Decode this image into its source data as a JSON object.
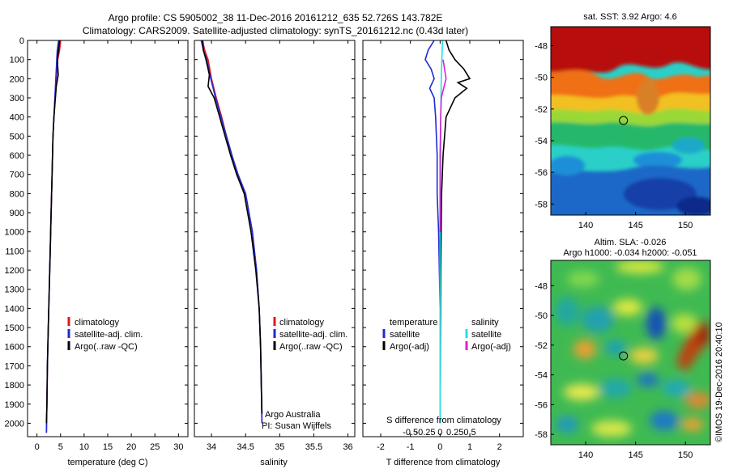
{
  "header": {
    "title_line1": "Argo profile: CS 5905002_38 11-Dec-2016 20161212_635 52.726S 143.782E",
    "title_line2": "Climatology: CARS2009. Satellite-adjusted climatology: synTS_20161212.nc (0.43d later)"
  },
  "colors": {
    "climatology": "#e8141b",
    "satellite": "#1f2ad8",
    "argo": "#000000",
    "salinity_satellite": "#22e0e8",
    "salinity_argo": "#e01fd0"
  },
  "chart_data": [
    {
      "type": "line",
      "name": "temperature-profile",
      "xlabel": "temperature (deg C)",
      "ylabel": "",
      "xlim": [
        -2,
        32
      ],
      "ylim": [
        2070,
        0
      ],
      "x_ticks": [
        0,
        5,
        10,
        15,
        20,
        25,
        30
      ],
      "y_ticks": [
        0,
        100,
        200,
        300,
        400,
        500,
        600,
        700,
        800,
        900,
        1000,
        1100,
        1200,
        1300,
        1400,
        1500,
        1600,
        1700,
        1800,
        1900,
        2000
      ],
      "legend": [
        "climatology",
        "satellite-adj. clim.",
        "Argo(..raw -QC)"
      ],
      "legend_position": "lower-right",
      "series": [
        {
          "name": "climatology",
          "color": "#e8141b",
          "x": [
            5.0,
            4.8,
            4.4,
            4.1,
            3.8,
            3.6,
            3.4,
            3.2,
            3.0,
            2.8,
            2.6,
            2.4,
            2.2,
            2.1,
            2.0
          ],
          "y": [
            0,
            50,
            100,
            200,
            300,
            400,
            500,
            700,
            900,
            1100,
            1300,
            1500,
            1700,
            1900,
            2050
          ]
        },
        {
          "name": "satellite-adj. clim.",
          "color": "#1f2ad8",
          "x": [
            4.6,
            4.3,
            4.2,
            4.0,
            3.8,
            3.6,
            3.4,
            3.2,
            3.0,
            2.8,
            2.6,
            2.4,
            2.2,
            2.1,
            2.0
          ],
          "y": [
            0,
            50,
            100,
            200,
            300,
            400,
            500,
            700,
            900,
            1100,
            1300,
            1500,
            1700,
            1900,
            2050
          ]
        },
        {
          "name": "Argo(..raw -QC)",
          "color": "#000000",
          "x": [
            4.8,
            4.6,
            4.3,
            4.5,
            4.1,
            3.9,
            3.6,
            3.4,
            3.2,
            3.0,
            2.8,
            2.6,
            2.4,
            2.2,
            2.1,
            2.0
          ],
          "y": [
            0,
            50,
            100,
            180,
            240,
            300,
            400,
            500,
            700,
            900,
            1100,
            1300,
            1500,
            1700,
            1900,
            2000
          ]
        }
      ]
    },
    {
      "type": "line",
      "name": "salinity-profile",
      "xlabel": "salinity",
      "ylabel": "",
      "xlim": [
        33.75,
        36.1
      ],
      "ylim": [
        2070,
        0
      ],
      "x_ticks": [
        34,
        34.5,
        35,
        35.5,
        36
      ],
      "legend": [
        "climatology",
        "satellite-adj. clim.",
        "Argo(..raw -QC)"
      ],
      "legend_position": "lower-right",
      "annotations": [
        "Argo Australia",
        "PI: Susan Wijffels"
      ],
      "series": [
        {
          "name": "climatology",
          "color": "#e8141b",
          "x": [
            33.87,
            33.9,
            33.95,
            34.0,
            34.07,
            34.15,
            34.22,
            34.3,
            34.38,
            34.5,
            34.6,
            34.66,
            34.7,
            34.72,
            34.73,
            34.74
          ],
          "y": [
            0,
            50,
            100,
            200,
            300,
            400,
            500,
            600,
            700,
            800,
            1000,
            1200,
            1400,
            1600,
            1800,
            2000
          ]
        },
        {
          "name": "satellite-adj. clim.",
          "color": "#1f2ad8",
          "x": [
            33.85,
            33.88,
            33.93,
            33.99,
            34.06,
            34.14,
            34.22,
            34.3,
            34.39,
            34.5,
            34.6,
            34.66,
            34.7,
            34.72,
            34.73,
            34.74
          ],
          "y": [
            0,
            50,
            100,
            200,
            300,
            400,
            500,
            600,
            700,
            800,
            1000,
            1200,
            1400,
            1600,
            1800,
            2000
          ]
        },
        {
          "name": "Argo(..raw -QC)",
          "color": "#000000",
          "x": [
            33.87,
            33.88,
            33.92,
            33.97,
            33.95,
            34.04,
            34.12,
            34.2,
            34.28,
            34.37,
            34.48,
            34.58,
            34.65,
            34.7,
            34.72,
            34.73,
            34.74
          ],
          "y": [
            0,
            50,
            100,
            180,
            240,
            300,
            400,
            500,
            600,
            700,
            800,
            1000,
            1200,
            1400,
            1600,
            1800,
            1950
          ]
        }
      ]
    },
    {
      "type": "line",
      "name": "difference-from-climatology",
      "xlabel": "T difference from climatology",
      "x2label": "S difference from climatology",
      "ylabel": "",
      "xlim": [
        -2.6,
        2.8
      ],
      "ylim": [
        2070,
        0
      ],
      "x_ticks": [
        -2,
        -1,
        0,
        1,
        2
      ],
      "x2_ticks": [
        -0.5,
        -0.25,
        0,
        0.25,
        0.5
      ],
      "legend_temperature": [
        "temperature",
        "satellite",
        "Argo(-adj)"
      ],
      "legend_salinity": [
        "salinity",
        "satellite",
        "Argo(-adj)"
      ],
      "legend_position": "lower",
      "series": [
        {
          "name": "temperature satellite",
          "color": "#1f2ad8",
          "x": [
            -0.2,
            -0.4,
            -0.5,
            -0.3,
            -0.2,
            -0.35,
            -0.2,
            -0.15,
            -0.1,
            -0.1,
            -0.05,
            0,
            0,
            0
          ],
          "y": [
            0,
            50,
            100,
            150,
            200,
            250,
            300,
            400,
            600,
            800,
            1000,
            1400,
            1800,
            2000
          ]
        },
        {
          "name": "temperature Argo(-adj)",
          "color": "#000000",
          "x": [
            0.2,
            0.3,
            0.5,
            0.8,
            1.0,
            0.6,
            0.9,
            0.5,
            0.2,
            0.1,
            0.05,
            0.02,
            0
          ],
          "y": [
            0,
            50,
            100,
            150,
            200,
            220,
            250,
            300,
            400,
            600,
            800,
            1200,
            1800
          ]
        },
        {
          "name": "salinity satellite",
          "color": "#22e0e8",
          "x": [
            0.04,
            0.03,
            0.02,
            0.01,
            0.01,
            0.005,
            0,
            0,
            0
          ],
          "y": [
            0,
            100,
            200,
            400,
            600,
            800,
            1000,
            1400,
            2000
          ]
        },
        {
          "name": "salinity Argo(-adj)",
          "color": "#e01fd0",
          "x": [
            0.05,
            0.1,
            0.06,
            0.02,
            0.01,
            0,
            0
          ],
          "y": [
            100,
            200,
            250,
            300,
            400,
            600,
            1000
          ]
        }
      ]
    },
    {
      "type": "heatmap",
      "name": "sat-sst-map",
      "title": "sat. SST: 3.92 Argo: 4.6",
      "x_ticks": [
        140,
        145,
        150
      ],
      "y_ticks": [
        -48,
        -50,
        -52,
        -54,
        -56,
        -58
      ],
      "xlim": [
        136.5,
        152.5
      ],
      "ylim": [
        -58.7,
        -46.8
      ],
      "marker": {
        "lon": 143.782,
        "lat": -52.726
      }
    },
    {
      "type": "heatmap",
      "name": "altim-sla-map",
      "title": "Altim. SLA: -0.026",
      "subtitle": "Argo h1000: -0.034 h2000: -0.051",
      "x_ticks": [
        140,
        145,
        150
      ],
      "y_ticks": [
        -48,
        -50,
        -52,
        -54,
        -56,
        -58
      ],
      "xlim": [
        136.5,
        152.5
      ],
      "ylim": [
        -58.7,
        -46.3
      ],
      "marker": {
        "lon": 143.782,
        "lat": -52.726
      }
    }
  ],
  "side_label": "©IMOS 19-Dec-2016 20:40:10"
}
